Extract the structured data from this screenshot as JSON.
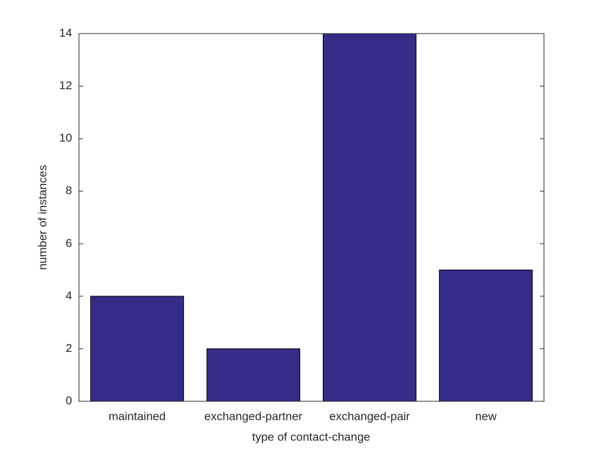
{
  "chart_data": {
    "type": "bar",
    "xlabel": "type of contact-change",
    "ylabel": "number of instances",
    "categories": [
      "maintained",
      "exchanged-partner",
      "exchanged-pair",
      "new"
    ],
    "values": [
      4,
      2,
      14,
      5
    ],
    "color": "#342c86",
    "ylim": [
      0,
      14
    ],
    "yticks": [
      0,
      2,
      4,
      6,
      8,
      10,
      12,
      14
    ],
    "grid": false
  }
}
